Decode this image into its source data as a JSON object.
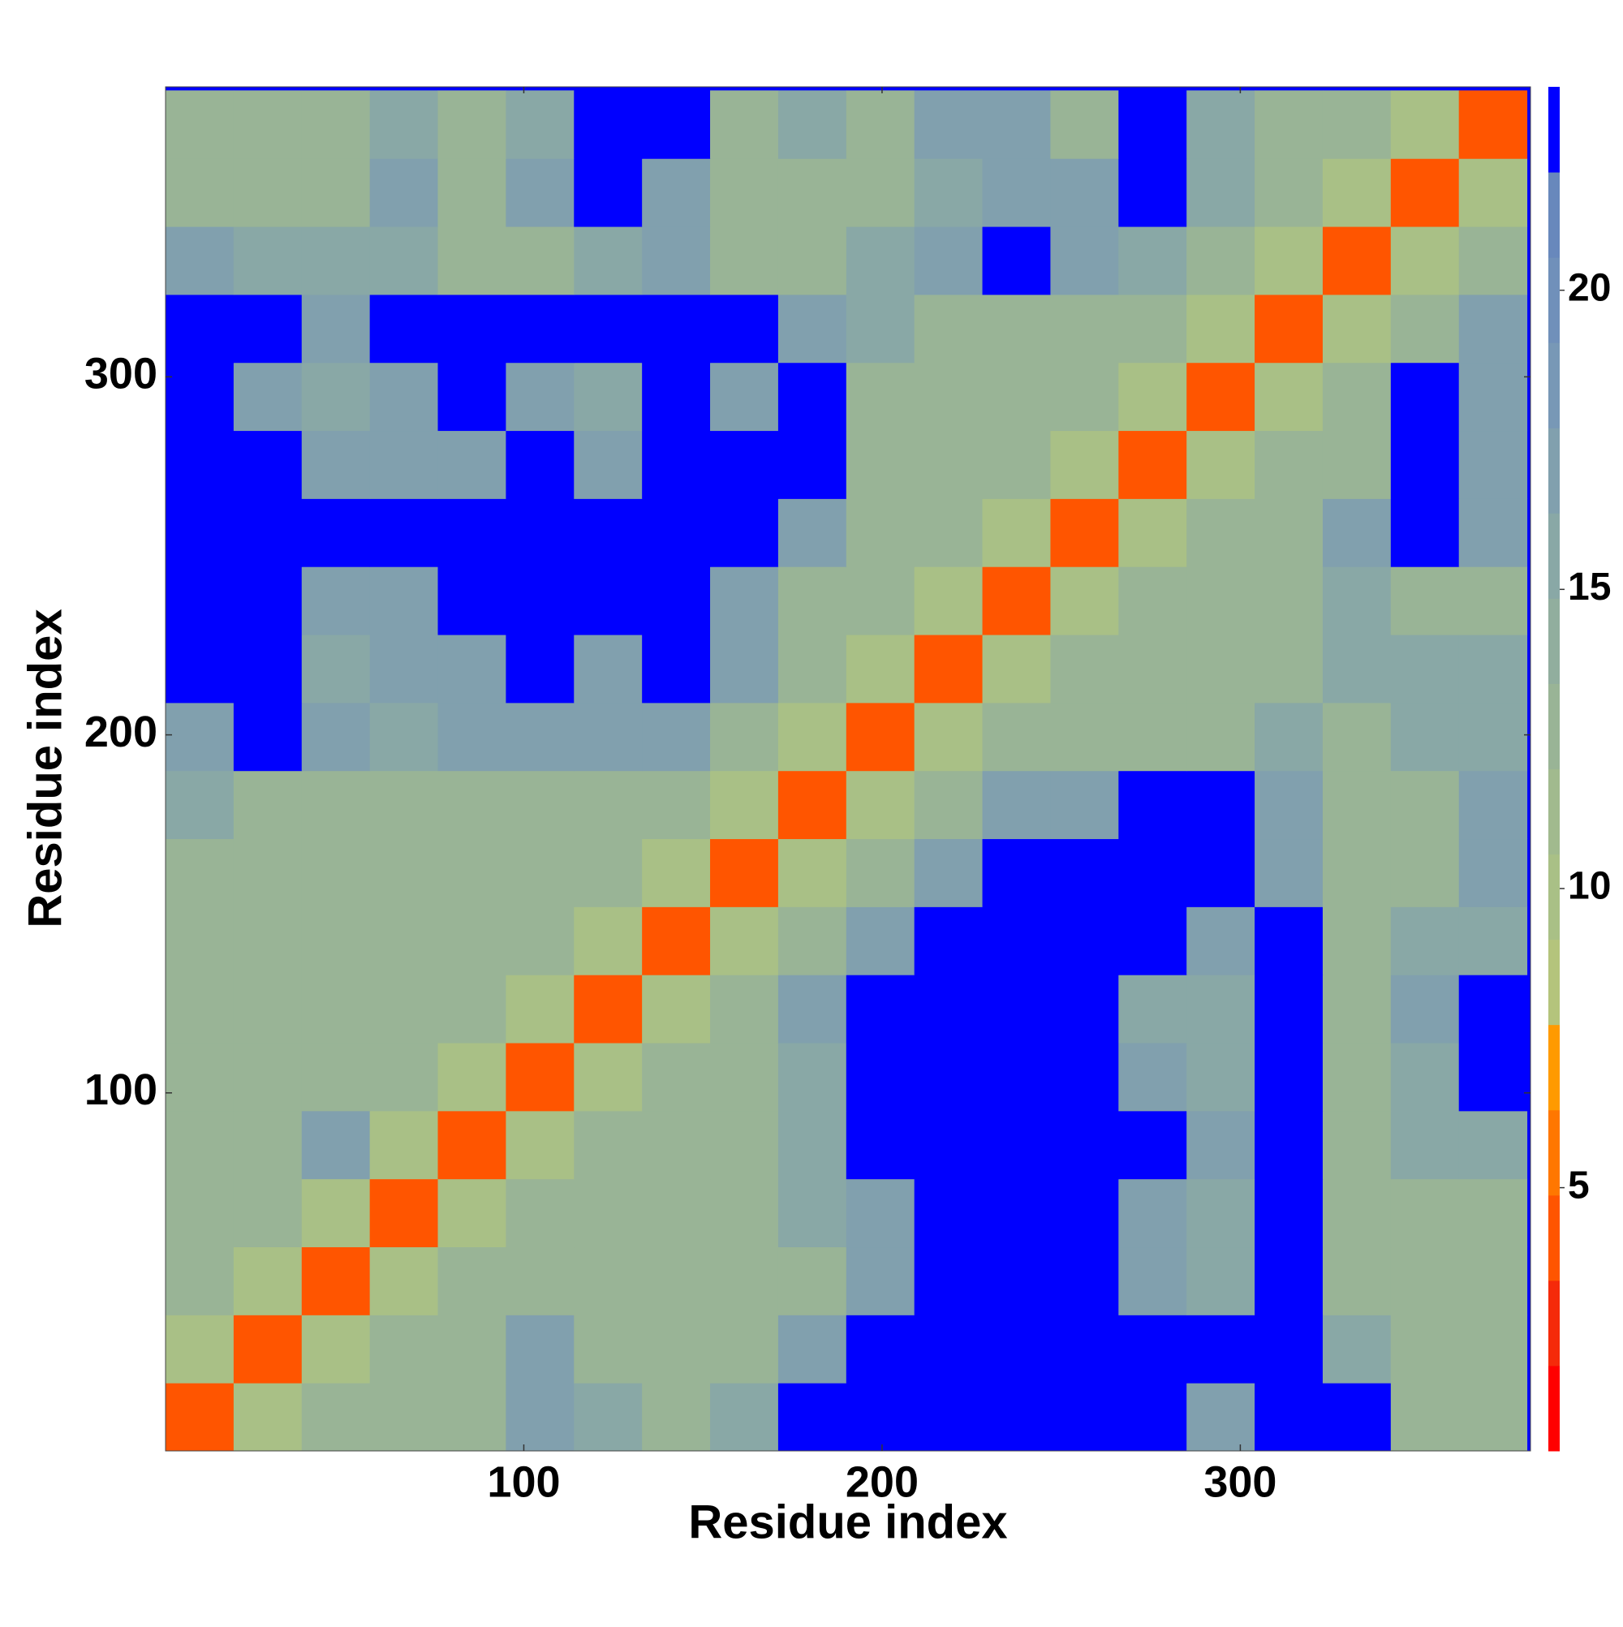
{
  "chart_data": {
    "type": "heatmap",
    "xlabel": "Residue index",
    "ylabel": "Residue index",
    "xlim": [
      0,
      381
    ],
    "ylim": [
      0,
      381
    ],
    "xticks": [
      100,
      200,
      300
    ],
    "yticks": [
      100,
      200,
      300
    ],
    "x_bins": [
      0,
      19,
      38,
      57,
      76,
      95,
      114,
      133,
      152,
      171,
      190,
      209,
      228,
      247,
      266,
      285,
      304,
      323,
      342,
      361,
      380
    ],
    "y_bins": [
      0,
      19,
      38,
      57,
      76,
      95,
      114,
      133,
      152,
      171,
      190,
      209,
      228,
      247,
      266,
      285,
      304,
      323,
      342,
      361,
      380
    ],
    "values": [
      [
        4,
        10,
        13,
        13,
        13,
        17,
        15,
        13,
        15,
        23,
        23,
        23,
        23,
        23,
        23,
        17,
        23,
        23,
        13,
        13
      ],
      [
        10,
        4,
        10,
        13,
        13,
        17,
        13,
        13,
        13,
        17,
        23,
        23,
        23,
        23,
        23,
        23,
        23,
        15,
        13,
        13
      ],
      [
        13,
        10,
        4,
        10,
        13,
        13,
        13,
        13,
        13,
        13,
        17,
        23,
        23,
        23,
        17,
        15,
        23,
        13,
        13,
        13
      ],
      [
        13,
        13,
        10,
        4,
        10,
        13,
        13,
        13,
        13,
        15,
        17,
        23,
        23,
        23,
        17,
        15,
        23,
        13,
        13,
        13
      ],
      [
        13,
        13,
        17,
        10,
        4,
        10,
        13,
        13,
        13,
        15,
        23,
        23,
        23,
        23,
        23,
        17,
        23,
        13,
        15,
        15
      ],
      [
        13,
        13,
        13,
        13,
        10,
        4,
        10,
        13,
        13,
        15,
        23,
        23,
        23,
        23,
        17,
        15,
        23,
        13,
        15,
        23
      ],
      [
        13,
        13,
        13,
        13,
        13,
        10,
        4,
        10,
        13,
        17,
        23,
        23,
        23,
        23,
        15,
        15,
        23,
        13,
        17,
        23
      ],
      [
        13,
        13,
        13,
        13,
        13,
        13,
        10,
        4,
        10,
        13,
        17,
        23,
        23,
        23,
        23,
        17,
        23,
        13,
        15,
        15
      ],
      [
        13,
        13,
        13,
        13,
        13,
        13,
        13,
        10,
        4,
        10,
        13,
        17,
        23,
        23,
        23,
        23,
        17,
        13,
        13,
        17
      ],
      [
        15,
        13,
        13,
        13,
        13,
        13,
        13,
        13,
        10,
        4,
        10,
        13,
        17,
        17,
        23,
        23,
        17,
        13,
        13,
        17
      ],
      [
        17,
        23,
        17,
        15,
        17,
        17,
        17,
        17,
        13,
        10,
        4,
        10,
        13,
        13,
        13,
        13,
        15,
        13,
        15,
        15
      ],
      [
        23,
        23,
        15,
        17,
        17,
        23,
        17,
        23,
        17,
        13,
        10,
        4,
        10,
        13,
        13,
        13,
        13,
        15,
        15,
        15
      ],
      [
        23,
        23,
        17,
        17,
        23,
        23,
        23,
        23,
        17,
        13,
        13,
        10,
        4,
        10,
        13,
        13,
        13,
        15,
        13,
        13
      ],
      [
        23,
        23,
        23,
        23,
        23,
        23,
        23,
        23,
        23,
        17,
        13,
        13,
        10,
        4,
        10,
        13,
        13,
        17,
        23,
        17
      ],
      [
        23,
        23,
        17,
        17,
        17,
        23,
        17,
        23,
        23,
        23,
        13,
        13,
        13,
        10,
        4,
        10,
        13,
        13,
        23,
        17
      ],
      [
        23,
        17,
        15,
        17,
        23,
        17,
        15,
        23,
        17,
        23,
        13,
        13,
        13,
        13,
        10,
        4,
        10,
        13,
        23,
        17
      ],
      [
        23,
        23,
        17,
        23,
        23,
        23,
        23,
        23,
        23,
        17,
        15,
        13,
        13,
        13,
        13,
        10,
        4,
        10,
        13,
        17
      ],
      [
        17,
        15,
        15,
        15,
        13,
        13,
        15,
        17,
        13,
        13,
        15,
        17,
        23,
        17,
        15,
        13,
        10,
        4,
        10,
        13
      ],
      [
        13,
        13,
        13,
        17,
        13,
        17,
        23,
        17,
        13,
        13,
        13,
        15,
        17,
        17,
        23,
        15,
        13,
        10,
        4,
        10
      ],
      [
        13,
        13,
        13,
        15,
        13,
        15,
        23,
        23,
        13,
        15,
        13,
        17,
        17,
        13,
        23,
        15,
        13,
        13,
        10,
        4
      ]
    ],
    "colorbar": {
      "lim": [
        0.6,
        23.4
      ],
      "ticks": [
        5,
        10,
        15,
        20
      ],
      "colors": [
        "#ff0000",
        "#f52a0a",
        "#ff5500",
        "#ff7700",
        "#ff9a00",
        "#b4c47c",
        "#a9c086",
        "#a1ba8e",
        "#99b496",
        "#91ae9e",
        "#89a8a6",
        "#81a0ae",
        "#7898b6",
        "#7090ba",
        "#6888bc",
        "#0000ff"
      ]
    }
  }
}
